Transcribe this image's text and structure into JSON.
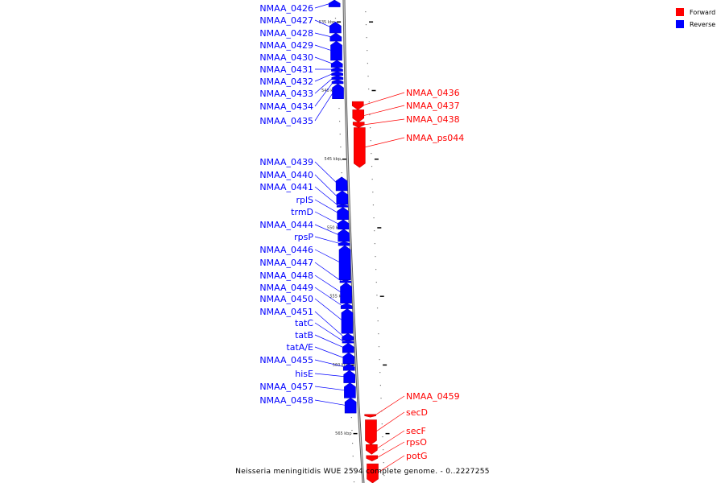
{
  "caption": "Neisseria meningitidis WUE 2594 complete genome. - 0..2227255",
  "legend": [
    {
      "label": "Forward",
      "color": "#ff0000"
    },
    {
      "label": "Reverse",
      "color": "#0000ff"
    }
  ],
  "colors": {
    "forward": "#ff0000",
    "reverse": "#0000ff",
    "backbone": "#999999"
  },
  "scale": {
    "kbp_min": 533.4,
    "kbp_max": 568.6
  },
  "ticks": [
    {
      "kbp": 535,
      "label": "535 kbp"
    },
    {
      "kbp": 540,
      "label": "540 kbp"
    },
    {
      "kbp": 545,
      "label": "545 kbp"
    },
    {
      "kbp": 550,
      "label": "550 kbp"
    },
    {
      "kbp": 555,
      "label": "555 kbp"
    },
    {
      "kbp": 560,
      "label": "560 kbp"
    },
    {
      "kbp": 565,
      "label": "565 kbp"
    }
  ],
  "reverse_genes": [
    {
      "name": "NMAA_0426",
      "start": 533.4,
      "end": 533.9
    },
    {
      "name": "NMAA_0427",
      "start": 535.0,
      "end": 535.8
    },
    {
      "name": "NMAA_0428",
      "start": 535.8,
      "end": 536.4
    },
    {
      "name": "NMAA_0429",
      "start": 536.4,
      "end": 537.8
    },
    {
      "name": "NMAA_0430",
      "start": 537.8,
      "end": 538.3
    },
    {
      "name": "NMAA_0431",
      "start": 538.3,
      "end": 538.6
    },
    {
      "name": "NMAA_0432",
      "start": 538.6,
      "end": 538.9
    },
    {
      "name": "NMAA_0433",
      "start": 538.9,
      "end": 539.2
    },
    {
      "name": "NMAA_0434",
      "start": 539.2,
      "end": 539.5
    },
    {
      "name": "NMAA_0435",
      "start": 539.5,
      "end": 540.6
    },
    {
      "name": "NMAA_0439",
      "start": 546.3,
      "end": 547.3
    },
    {
      "name": "NMAA_0440",
      "start": 547.3,
      "end": 548.3
    },
    {
      "name": "NMAA_0441",
      "start": 548.3,
      "end": 548.5
    },
    {
      "name": "rplS",
      "start": 548.5,
      "end": 549.4
    },
    {
      "name": "trmD",
      "start": 549.4,
      "end": 550.1
    },
    {
      "name": "NMAA_0444",
      "start": 550.1,
      "end": 551.0
    },
    {
      "name": "rpsP",
      "start": 551.0,
      "end": 551.3
    },
    {
      "name": "NMAA_0446",
      "start": 551.3,
      "end": 553.8
    },
    {
      "name": "NMAA_0447",
      "start": 553.8,
      "end": 554.0
    },
    {
      "name": "NMAA_0448",
      "start": 554.0,
      "end": 555.5
    },
    {
      "name": "NMAA_0449",
      "start": 555.5,
      "end": 555.9
    },
    {
      "name": "NMAA_0450",
      "start": 555.9,
      "end": 557.7
    },
    {
      "name": "NMAA_0451",
      "start": 557.7,
      "end": 558.2
    },
    {
      "name": "tatC",
      "start": 558.2,
      "end": 558.4
    },
    {
      "name": "tatB",
      "start": 558.4,
      "end": 559.1
    },
    {
      "name": "tatA/E",
      "start": 559.1,
      "end": 559.9
    },
    {
      "name": "NMAA_0455",
      "start": 559.9,
      "end": 560.4
    },
    {
      "name": "hisE",
      "start": 560.4,
      "end": 561.3
    },
    {
      "name": "NMAA_0457",
      "start": 561.3,
      "end": 562.4
    },
    {
      "name": "NMAA_0458",
      "start": 562.4,
      "end": 563.5
    }
  ],
  "forward_genes": [
    {
      "name": "NMAA_0436",
      "start": 540.8,
      "end": 541.4
    },
    {
      "name": "NMAA_0437",
      "start": 541.4,
      "end": 542.3
    },
    {
      "name": "NMAA_0438",
      "start": 542.3,
      "end": 542.7
    },
    {
      "name": "NMAA_ps044",
      "start": 542.7,
      "end": 545.6
    },
    {
      "name": "NMAA_0459",
      "start": 563.6,
      "end": 563.8
    },
    {
      "name": "secD",
      "start": 564.0,
      "end": 565.8
    },
    {
      "name": "secF",
      "start": 565.8,
      "end": 566.5
    },
    {
      "name": "rpsO",
      "start": 566.6,
      "end": 567.0
    },
    {
      "name": "potG",
      "start": 567.2,
      "end": 568.6
    }
  ]
}
